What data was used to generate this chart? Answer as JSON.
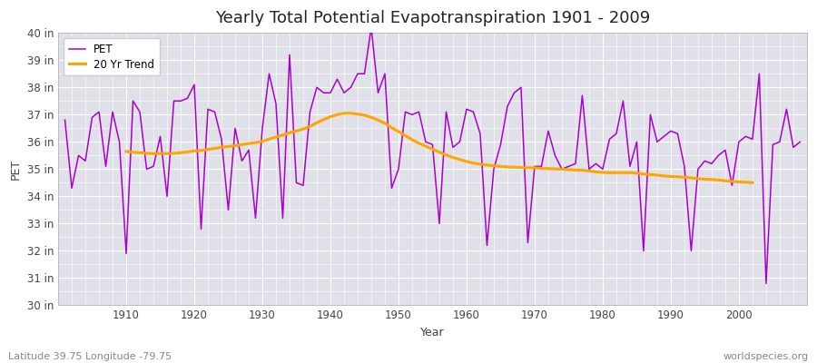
{
  "title": "Yearly Total Potential Evapotranspiration 1901 - 2009",
  "xlabel": "Year",
  "ylabel": "PET",
  "footer_left": "Latitude 39.75 Longitude -79.75",
  "footer_right": "worldspecies.org",
  "ylim": [
    30,
    40
  ],
  "xlim": [
    1900,
    2010
  ],
  "years": [
    1901,
    1902,
    1903,
    1904,
    1905,
    1906,
    1907,
    1908,
    1909,
    1910,
    1911,
    1912,
    1913,
    1914,
    1915,
    1916,
    1917,
    1918,
    1919,
    1920,
    1921,
    1922,
    1923,
    1924,
    1925,
    1926,
    1927,
    1928,
    1929,
    1930,
    1931,
    1932,
    1933,
    1934,
    1935,
    1936,
    1937,
    1938,
    1939,
    1940,
    1941,
    1942,
    1943,
    1944,
    1945,
    1946,
    1947,
    1948,
    1949,
    1950,
    1951,
    1952,
    1953,
    1954,
    1955,
    1956,
    1957,
    1958,
    1959,
    1960,
    1961,
    1962,
    1963,
    1964,
    1965,
    1966,
    1967,
    1968,
    1969,
    1970,
    1971,
    1972,
    1973,
    1974,
    1975,
    1976,
    1977,
    1978,
    1979,
    1980,
    1981,
    1982,
    1983,
    1984,
    1985,
    1986,
    1987,
    1988,
    1989,
    1990,
    1991,
    1992,
    1993,
    1994,
    1995,
    1996,
    1997,
    1998,
    1999,
    2000,
    2001,
    2002,
    2003,
    2004,
    2005,
    2006,
    2007,
    2008,
    2009
  ],
  "pet": [
    36.8,
    34.3,
    35.5,
    35.3,
    36.9,
    37.1,
    35.1,
    37.1,
    36.0,
    31.9,
    37.5,
    37.1,
    35.0,
    35.1,
    36.2,
    34.0,
    37.5,
    37.5,
    37.6,
    38.1,
    32.8,
    37.2,
    37.1,
    36.1,
    33.5,
    36.5,
    35.3,
    35.7,
    33.2,
    36.5,
    38.5,
    37.4,
    33.2,
    39.2,
    34.5,
    34.4,
    37.1,
    38.0,
    37.8,
    37.8,
    38.3,
    37.8,
    38.0,
    38.5,
    38.5,
    40.2,
    37.8,
    38.5,
    34.3,
    35.0,
    37.1,
    37.0,
    37.1,
    36.0,
    35.9,
    33.0,
    37.1,
    35.8,
    36.0,
    37.2,
    37.1,
    36.3,
    32.2,
    35.0,
    35.9,
    37.3,
    37.8,
    38.0,
    32.3,
    35.1,
    35.1,
    36.4,
    35.5,
    35.0,
    35.1,
    35.2,
    37.7,
    35.0,
    35.2,
    35.0,
    36.1,
    36.3,
    37.5,
    35.1,
    36.0,
    32.0,
    37.0,
    36.0,
    36.2,
    36.4,
    36.3,
    35.1,
    32.0,
    35.0,
    35.3,
    35.2,
    35.5,
    35.7,
    34.4,
    36.0,
    36.2,
    36.1,
    38.5,
    30.8,
    35.9,
    36.0,
    37.2,
    35.8,
    36.0
  ],
  "trend": [
    null,
    null,
    null,
    null,
    null,
    null,
    null,
    null,
    null,
    35.65,
    35.62,
    35.6,
    35.58,
    35.57,
    35.57,
    35.57,
    35.58,
    35.6,
    35.63,
    35.67,
    35.68,
    35.72,
    35.76,
    35.8,
    35.83,
    35.86,
    35.9,
    35.94,
    35.97,
    36.02,
    36.1,
    36.18,
    36.25,
    36.33,
    36.4,
    36.47,
    36.57,
    36.7,
    36.82,
    36.92,
    37.0,
    37.05,
    37.05,
    37.02,
    36.98,
    36.9,
    36.8,
    36.68,
    36.52,
    36.38,
    36.23,
    36.08,
    35.95,
    35.84,
    35.73,
    35.62,
    35.52,
    35.43,
    35.35,
    35.28,
    35.22,
    35.18,
    35.15,
    35.12,
    35.1,
    35.08,
    35.07,
    35.06,
    35.05,
    35.05,
    35.03,
    35.02,
    35.01,
    35.0,
    34.98,
    34.97,
    34.96,
    34.93,
    34.9,
    34.88,
    34.87,
    34.87,
    34.87,
    34.87,
    34.85,
    34.82,
    34.8,
    34.78,
    34.75,
    34.73,
    34.72,
    34.7,
    34.68,
    34.65,
    34.63,
    34.62,
    34.6,
    34.57,
    34.55,
    34.53,
    34.52,
    34.5,
    null,
    null,
    null,
    null,
    null,
    null
  ],
  "pet_color": "#aa00cc",
  "trend_color": "#ffa500",
  "plot_bg_color": "#e0e0e8",
  "fig_bg_color": "#ffffff",
  "grid_color": "#ffffff",
  "title_fontsize": 13,
  "label_fontsize": 9,
  "tick_fontsize": 8.5,
  "footer_fontsize": 8
}
